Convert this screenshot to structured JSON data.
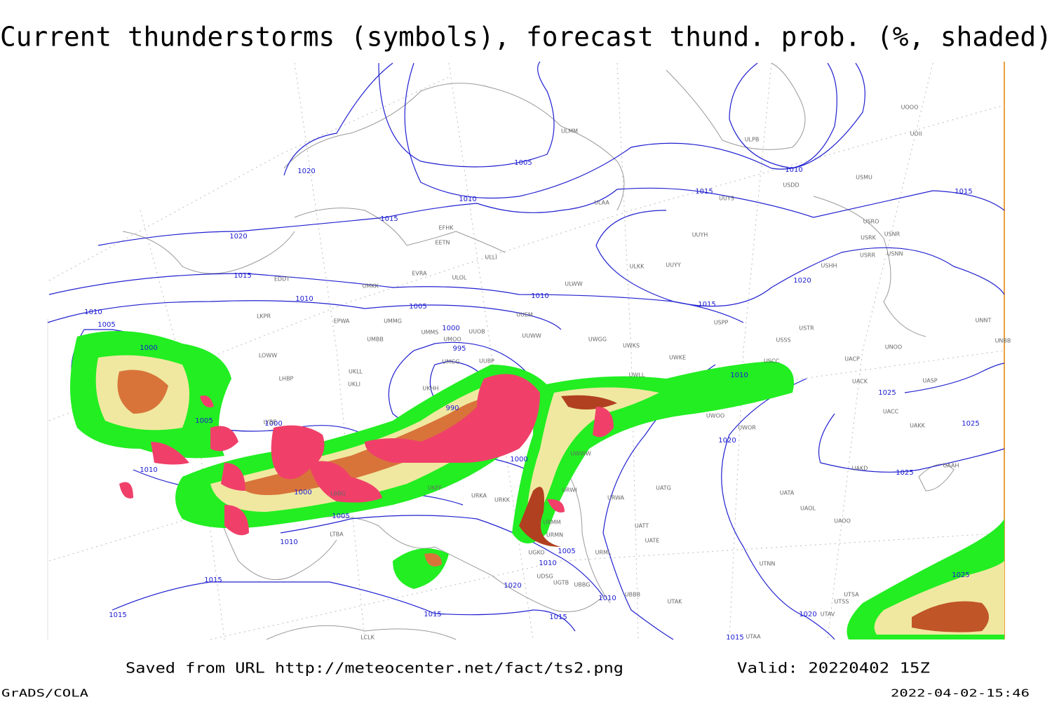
{
  "title": "Current thunderstorms (symbols), forecast thund. prob. (%, shaded)",
  "footer": {
    "saved": "Saved from URL http://meteocenter.net/fact/ts2.png",
    "valid": "Valid: 20220402 15Z",
    "software": "GrADS/COLA",
    "timestamp": "2022-04-02-15:46"
  },
  "isobar_labels": [
    "1020",
    "1005",
    "1010",
    "1015",
    "1020",
    "1015",
    "1010",
    "1005",
    "1010",
    "1015",
    "1010",
    "1015",
    "1015",
    "1020",
    "1010",
    "1005",
    "1000",
    "1000",
    "995",
    "990",
    "1000",
    "1005",
    "1010",
    "1000",
    "1005",
    "1010",
    "1015",
    "1015",
    "1000",
    "1005",
    "1010",
    "1020",
    "1015",
    "1015",
    "1010",
    "1020",
    "1015",
    "1020",
    "1025",
    "1025",
    "1025",
    "1025",
    "1010"
  ],
  "stations": [
    "ULMM",
    "ULAA",
    "UUYH",
    "ULKK",
    "UUYY",
    "ULWW",
    "UUYS",
    "ULPB",
    "USDD",
    "USMU",
    "UOOO",
    "UOII",
    "USRO",
    "USRK",
    "USNR",
    "USRR",
    "USNN",
    "USHH",
    "UUEM",
    "UUWW",
    "UWGG",
    "UWKS",
    "USPP",
    "USTR",
    "USSS",
    "UNNT",
    "UNBB",
    "UNOO",
    "UWKE",
    "USCC",
    "UACP",
    "UACK",
    "UASP",
    "UACC",
    "UAKK",
    "UAKD",
    "UAAH",
    "UATA",
    "UAOL",
    "UAOO",
    "UATG",
    "URWA",
    "UATE",
    "UATT",
    "URML",
    "UTNN",
    "UTAK",
    "UBBB",
    "UTSA",
    "UTSS",
    "UTAV",
    "UTAA",
    "EFHK",
    "EETN",
    "EVRA",
    "ULOL",
    "UMKK",
    "EDDT",
    "EPWA",
    "UMMG",
    "UMMS",
    "UMOO",
    "UUOB",
    "UMBB",
    "UMGG",
    "UUBP",
    "UKLL",
    "UKLI",
    "UKHH",
    "LKPR",
    "LOWW",
    "LHBP",
    "LYBE",
    "LBBG",
    "LTBA",
    "LCLK",
    "URKA",
    "URKK",
    "UGTB",
    "UDSG",
    "UBBG",
    "UGKO",
    "URMM",
    "URMN",
    "URWI",
    "UKFF",
    "UWWW",
    "UWOO",
    "UWOR",
    "UWLL",
    "ULLI"
  ]
}
